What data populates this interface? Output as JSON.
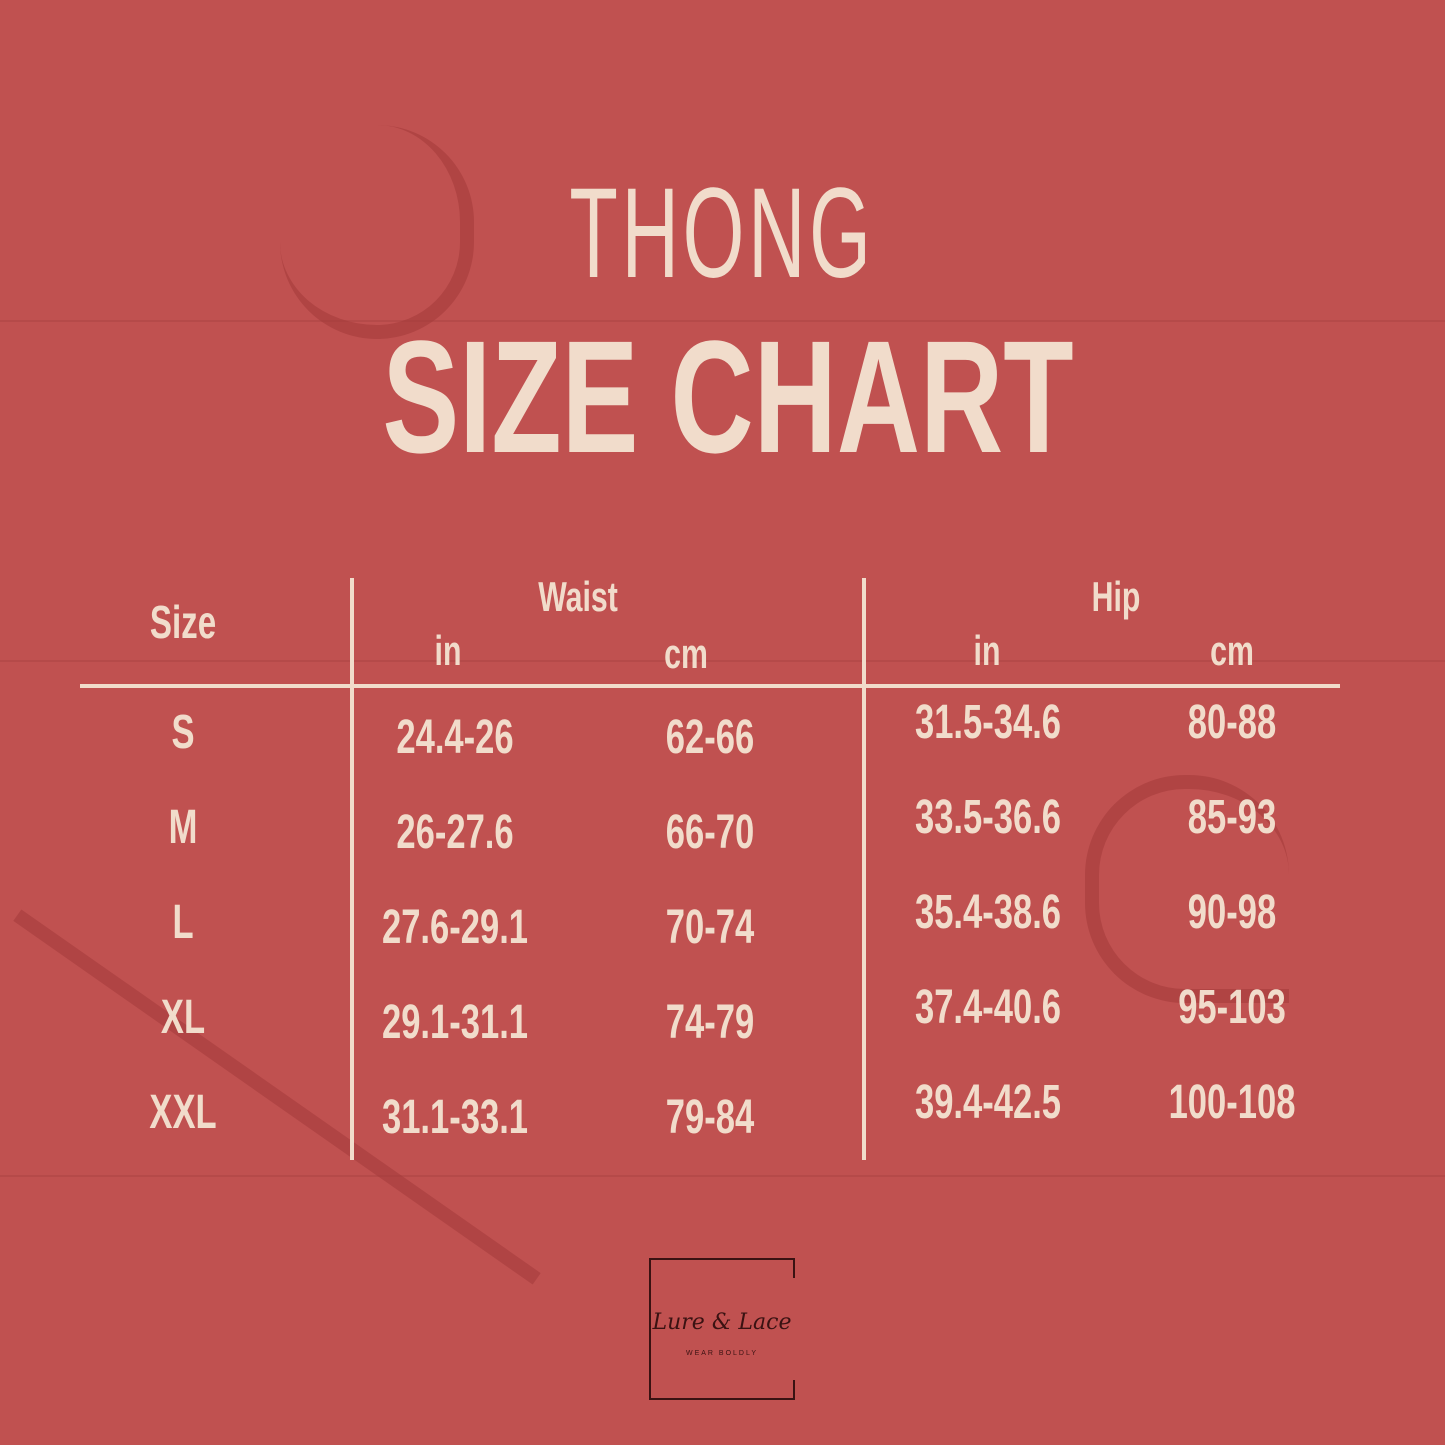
{
  "title": {
    "line1": "THONG",
    "line2": "SIZE CHART"
  },
  "table": {
    "headers": {
      "size": "Size",
      "waist": "Waist",
      "hip": "Hip",
      "units": [
        "in",
        "cm",
        "in",
        "cm"
      ]
    },
    "rows": [
      {
        "size": "S",
        "waist_in": "24.4-26",
        "waist_cm": "62-66",
        "hip_in": "31.5-34.6",
        "hip_cm": "80-88"
      },
      {
        "size": "M",
        "waist_in": "26-27.6",
        "waist_cm": "66-70",
        "hip_in": "33.5-36.6",
        "hip_cm": "85-93"
      },
      {
        "size": "L",
        "waist_in": "27.6-29.1",
        "waist_cm": "70-74",
        "hip_in": "35.4-38.6",
        "hip_cm": "90-98"
      },
      {
        "size": "XL",
        "waist_in": "29.1-31.1",
        "waist_cm": "74-79",
        "hip_in": "37.4-40.6",
        "hip_cm": "95-103"
      },
      {
        "size": "XXL",
        "waist_in": "31.1-33.1",
        "waist_cm": "79-84",
        "hip_in": "39.4-42.5",
        "hip_cm": "100-108"
      }
    ]
  },
  "logo": {
    "name": "Lure & Lace",
    "tagline": "WEAR BOLDLY"
  },
  "colors": {
    "background": "#c05150",
    "text": "#f1dccb",
    "logo": "#3a1212"
  }
}
